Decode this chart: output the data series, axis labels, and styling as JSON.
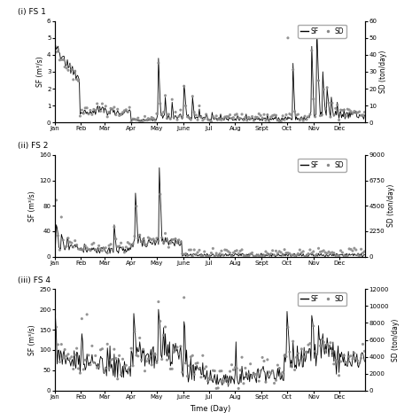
{
  "panels": [
    {
      "label": "(i) FS 1",
      "ylabel_left": "SF (m³/s)",
      "ylabel_right": "SD (ton/day)",
      "ylim_left": [
        0,
        6
      ],
      "ylim_right": [
        0,
        60
      ],
      "yticks_left": [
        0,
        1,
        2,
        3,
        4,
        5,
        6
      ],
      "yticks_right": [
        0,
        10,
        20,
        30,
        40,
        50,
        60
      ]
    },
    {
      "label": "(ii) FS 2",
      "ylabel_left": "SF (m³/s)",
      "ylabel_right": "SD (ton/day)",
      "ylim_left": [
        0,
        160
      ],
      "ylim_right": [
        0,
        9000
      ],
      "yticks_left": [
        0,
        40,
        80,
        120,
        160
      ],
      "yticks_right": [
        0,
        2250,
        4500,
        6750,
        9000
      ]
    },
    {
      "label": "(iii) FS 4",
      "ylabel_left": "SF (m³/s)",
      "ylabel_right": "SD (ton/day)",
      "ylim_left": [
        0,
        250
      ],
      "ylim_right": [
        0,
        12000
      ],
      "yticks_left": [
        0,
        50,
        100,
        150,
        200,
        250
      ],
      "yticks_right": [
        0,
        2000,
        4000,
        6000,
        8000,
        10000,
        12000
      ]
    }
  ],
  "months": [
    "Jan",
    "Feb",
    "Mar",
    "Apr",
    "May",
    "June",
    "Jul",
    "Aug",
    "Sept",
    "Oct",
    "Nov",
    "Dec"
  ],
  "xlabel": "Time (Day)",
  "sf_color": "#000000",
  "sd_color": "#888888",
  "background_color": "#ffffff",
  "legend_sf_label": "SF",
  "legend_sd_label": "SD"
}
